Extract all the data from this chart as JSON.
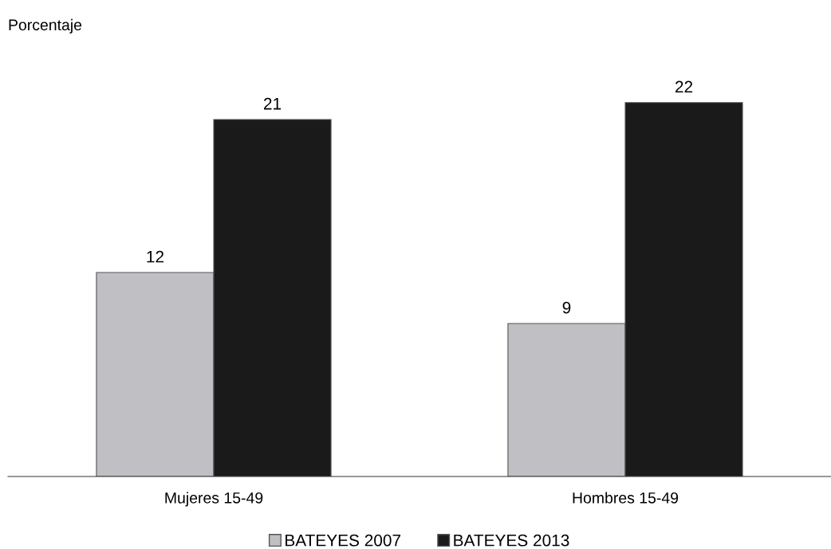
{
  "chart_data": {
    "type": "bar",
    "ylabel": "Porcentaje",
    "categories": [
      "Mujeres 15-49",
      "Hombres 15-49"
    ],
    "series": [
      {
        "name": "BATEYES 2007",
        "color": "#c0c0c4",
        "values": [
          12,
          9
        ]
      },
      {
        "name": "BATEYES 2013",
        "color": "#1a1a1a",
        "values": [
          21,
          22
        ]
      }
    ],
    "data_labels": true,
    "legend": "bottom",
    "grid": false,
    "tick_labels": "x"
  }
}
